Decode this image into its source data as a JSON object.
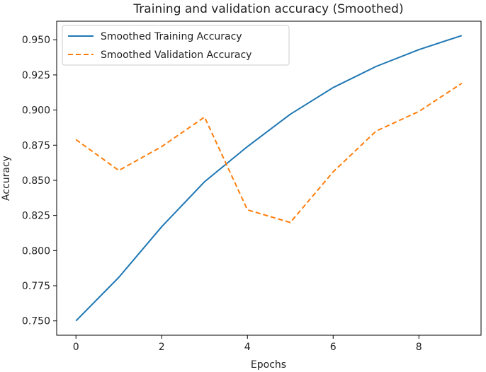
{
  "chart_data": {
    "type": "line",
    "title": "Training and validation accuracy (Smoothed)",
    "xlabel": "Epochs",
    "ylabel": "Accuracy",
    "xlim": [
      -0.45,
      9.45
    ],
    "ylim": [
      0.7398,
      0.9632
    ],
    "xticks": [
      0,
      2,
      4,
      6,
      8
    ],
    "yticks": [
      0.75,
      0.775,
      0.8,
      0.825,
      0.85,
      0.875,
      0.9,
      0.925,
      0.95
    ],
    "ytick_labels": [
      "0.750",
      "0.775",
      "0.800",
      "0.825",
      "0.850",
      "0.875",
      "0.900",
      "0.925",
      "0.950"
    ],
    "grid": false,
    "legend_position": "upper-left",
    "x": [
      0,
      1,
      2,
      3,
      4,
      5,
      6,
      7,
      8,
      9
    ],
    "series": [
      {
        "name": "Smoothed Training Accuracy",
        "color": "#1f77b4",
        "style": "solid",
        "values": [
          0.75,
          0.781,
          0.817,
          0.849,
          0.874,
          0.897,
          0.916,
          0.931,
          0.943,
          0.953
        ]
      },
      {
        "name": "Smoothed Validation Accuracy",
        "color": "#ff7f0e",
        "style": "dashed",
        "values": [
          0.879,
          0.857,
          0.874,
          0.895,
          0.829,
          0.82,
          0.856,
          0.885,
          0.899,
          0.919
        ]
      }
    ]
  }
}
